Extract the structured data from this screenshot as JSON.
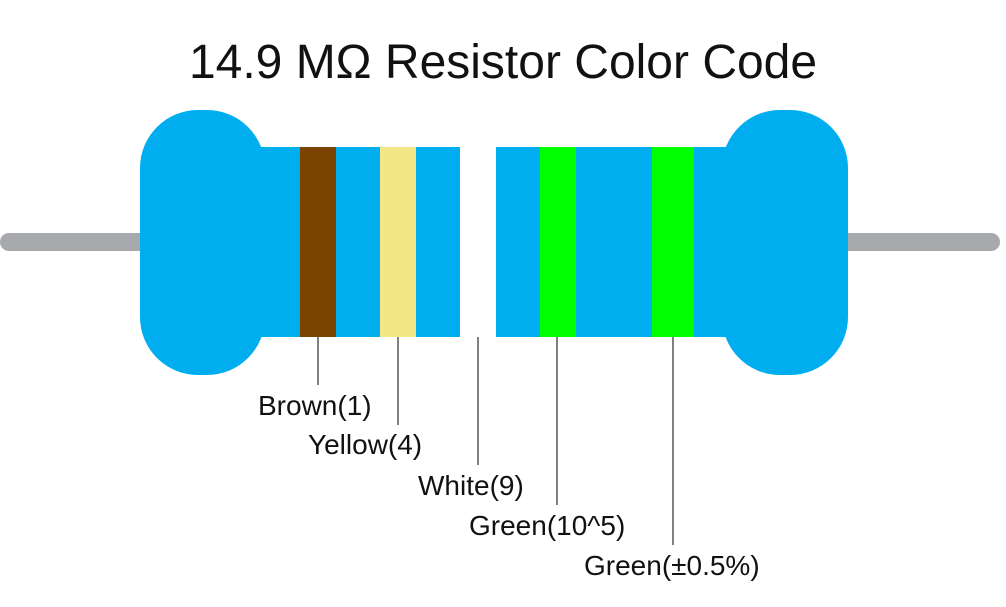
{
  "header": {
    "title": "14.9 MΩ Resistor Color Code"
  },
  "bands": [
    {
      "label": "Brown(1)"
    },
    {
      "label": "Yellow(4)"
    },
    {
      "label": "White(9)"
    },
    {
      "label": "Green(10^5)"
    },
    {
      "label": "Green(±0.5%)"
    }
  ]
}
